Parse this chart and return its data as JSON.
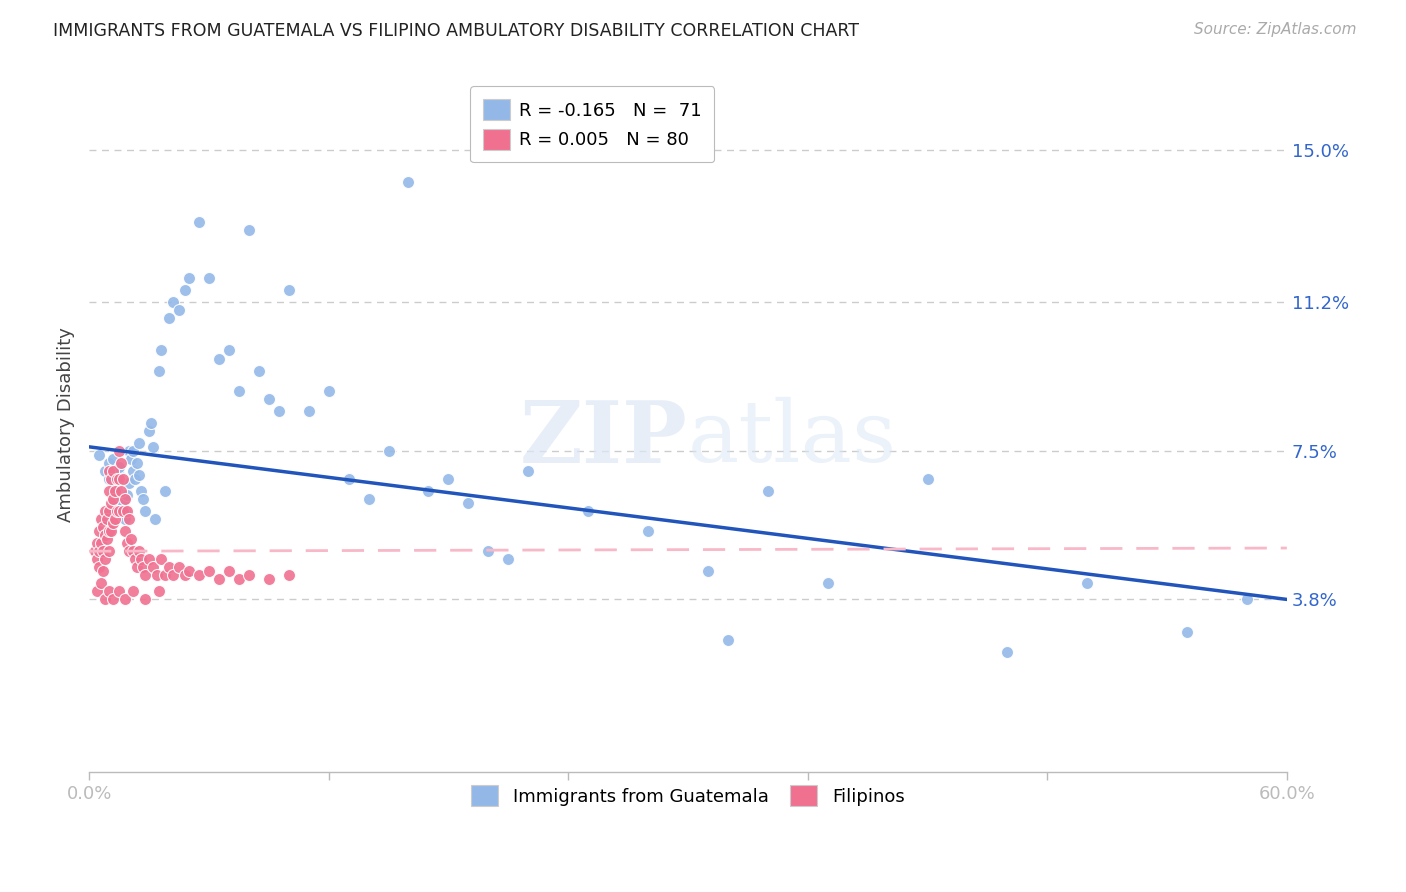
{
  "title": "IMMIGRANTS FROM GUATEMALA VS FILIPINO AMBULATORY DISABILITY CORRELATION CHART",
  "source": "Source: ZipAtlas.com",
  "ylabel": "Ambulatory Disability",
  "right_yticks": [
    "15.0%",
    "11.2%",
    "7.5%",
    "3.8%"
  ],
  "right_ytick_vals": [
    0.15,
    0.112,
    0.075,
    0.038
  ],
  "xlim": [
    0.0,
    0.6
  ],
  "ylim": [
    -0.005,
    0.168
  ],
  "watermark": "ZIPatlas",
  "legend_blue_R": "R = -0.165",
  "legend_blue_N": "N =  71",
  "legend_pink_R": "R = 0.005",
  "legend_pink_N": "N = 80",
  "blue_color": "#93b8e8",
  "pink_color": "#f07090",
  "line_blue_color": "#2255bb",
  "line_pink_color": "#f8b8c8",
  "background_color": "#ffffff",
  "grid_color": "#cccccc",
  "scatter_blue_x": [
    0.005,
    0.008,
    0.01,
    0.01,
    0.012,
    0.013,
    0.014,
    0.015,
    0.015,
    0.016,
    0.017,
    0.018,
    0.018,
    0.019,
    0.02,
    0.02,
    0.021,
    0.022,
    0.022,
    0.023,
    0.024,
    0.025,
    0.025,
    0.026,
    0.027,
    0.028,
    0.03,
    0.031,
    0.032,
    0.033,
    0.035,
    0.036,
    0.038,
    0.04,
    0.042,
    0.045,
    0.048,
    0.05,
    0.055,
    0.06,
    0.065,
    0.07,
    0.075,
    0.08,
    0.085,
    0.09,
    0.095,
    0.1,
    0.11,
    0.12,
    0.13,
    0.14,
    0.15,
    0.16,
    0.17,
    0.18,
    0.19,
    0.2,
    0.21,
    0.22,
    0.25,
    0.28,
    0.31,
    0.34,
    0.37,
    0.42,
    0.46,
    0.5,
    0.55,
    0.58,
    0.32
  ],
  "scatter_blue_y": [
    0.074,
    0.07,
    0.068,
    0.072,
    0.073,
    0.066,
    0.065,
    0.069,
    0.071,
    0.063,
    0.062,
    0.06,
    0.058,
    0.064,
    0.067,
    0.075,
    0.073,
    0.07,
    0.075,
    0.068,
    0.072,
    0.077,
    0.069,
    0.065,
    0.063,
    0.06,
    0.08,
    0.082,
    0.076,
    0.058,
    0.095,
    0.1,
    0.065,
    0.108,
    0.112,
    0.11,
    0.115,
    0.118,
    0.132,
    0.118,
    0.098,
    0.1,
    0.09,
    0.13,
    0.095,
    0.088,
    0.085,
    0.115,
    0.085,
    0.09,
    0.068,
    0.063,
    0.075,
    0.142,
    0.065,
    0.068,
    0.062,
    0.05,
    0.048,
    0.07,
    0.06,
    0.055,
    0.045,
    0.065,
    0.042,
    0.068,
    0.025,
    0.042,
    0.03,
    0.038,
    0.028
  ],
  "scatter_pink_x": [
    0.003,
    0.004,
    0.004,
    0.005,
    0.005,
    0.005,
    0.006,
    0.006,
    0.007,
    0.007,
    0.007,
    0.008,
    0.008,
    0.008,
    0.009,
    0.009,
    0.01,
    0.01,
    0.01,
    0.01,
    0.01,
    0.011,
    0.011,
    0.011,
    0.012,
    0.012,
    0.012,
    0.013,
    0.013,
    0.014,
    0.014,
    0.015,
    0.015,
    0.015,
    0.016,
    0.016,
    0.017,
    0.017,
    0.018,
    0.018,
    0.019,
    0.019,
    0.02,
    0.02,
    0.021,
    0.022,
    0.023,
    0.024,
    0.025,
    0.026,
    0.027,
    0.028,
    0.03,
    0.032,
    0.034,
    0.036,
    0.038,
    0.04,
    0.042,
    0.045,
    0.048,
    0.05,
    0.055,
    0.06,
    0.065,
    0.07,
    0.075,
    0.08,
    0.09,
    0.1,
    0.004,
    0.006,
    0.008,
    0.01,
    0.012,
    0.015,
    0.018,
    0.022,
    0.028,
    0.035
  ],
  "scatter_pink_y": [
    0.05,
    0.052,
    0.048,
    0.055,
    0.05,
    0.046,
    0.058,
    0.052,
    0.056,
    0.05,
    0.045,
    0.06,
    0.054,
    0.048,
    0.058,
    0.053,
    0.07,
    0.065,
    0.06,
    0.055,
    0.05,
    0.068,
    0.062,
    0.055,
    0.07,
    0.063,
    0.057,
    0.065,
    0.058,
    0.068,
    0.06,
    0.075,
    0.068,
    0.06,
    0.072,
    0.065,
    0.068,
    0.06,
    0.063,
    0.055,
    0.06,
    0.052,
    0.058,
    0.05,
    0.053,
    0.05,
    0.048,
    0.046,
    0.05,
    0.048,
    0.046,
    0.044,
    0.048,
    0.046,
    0.044,
    0.048,
    0.044,
    0.046,
    0.044,
    0.046,
    0.044,
    0.045,
    0.044,
    0.045,
    0.043,
    0.045,
    0.043,
    0.044,
    0.043,
    0.044,
    0.04,
    0.042,
    0.038,
    0.04,
    0.038,
    0.04,
    0.038,
    0.04,
    0.038,
    0.04
  ],
  "blue_line_x0": 0.0,
  "blue_line_x1": 0.6,
  "blue_line_y0": 0.076,
  "blue_line_y1": 0.038,
  "pink_line_x0": 0.0,
  "pink_line_x1": 0.6,
  "pink_line_y0": 0.05,
  "pink_line_y1": 0.0508
}
